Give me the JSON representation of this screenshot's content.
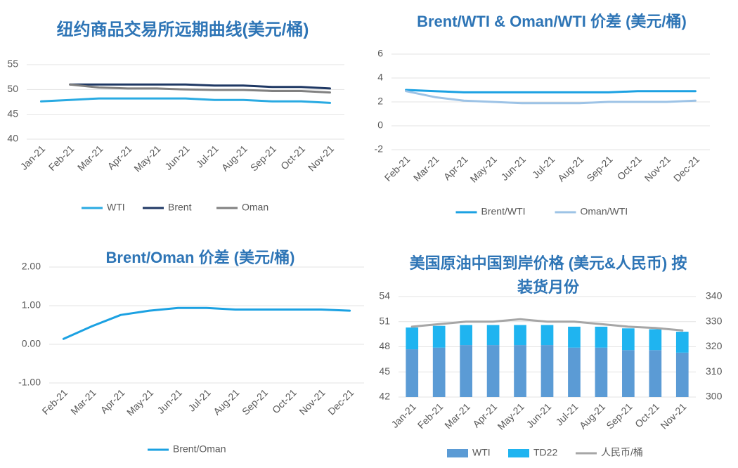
{
  "chart_data": [
    {
      "type": "line",
      "title": "纽约商品交易所远期曲线(美元/桶)",
      "categories": [
        "Jan-21",
        "Feb-21",
        "Mar-21",
        "Apr-21",
        "May-21",
        "Jun-21",
        "Jul-21",
        "Aug-21",
        "Sep-21",
        "Oct-21",
        "Nov-21"
      ],
      "series": [
        {
          "name": "WTI",
          "color": "#29aae2",
          "values": [
            47.6,
            47.9,
            48.2,
            48.2,
            48.2,
            48.2,
            47.9,
            47.9,
            47.6,
            47.6,
            47.3
          ]
        },
        {
          "name": "Brent",
          "color": "#1f3864",
          "values": [
            null,
            51,
            51,
            51,
            51,
            51,
            50.8,
            50.8,
            50.5,
            50.5,
            50.2
          ]
        },
        {
          "name": "Oman",
          "color": "#808080",
          "values": [
            null,
            51,
            50.4,
            50.2,
            50.2,
            50,
            49.9,
            49.9,
            49.7,
            49.7,
            49.4
          ]
        }
      ],
      "ylim": [
        40,
        55
      ],
      "yticks": [
        40,
        45,
        50,
        55
      ],
      "grid": true,
      "legend": "bottom"
    },
    {
      "type": "line",
      "title": "Brent/WTI & Oman/WTI 价差 (美元/桶)",
      "categories": [
        "Feb-21",
        "Mar-21",
        "Apr-21",
        "May-21",
        "Jun-21",
        "Jul-21",
        "Aug-21",
        "Sep-21",
        "Oct-21",
        "Nov-21",
        "Dec-21"
      ],
      "series": [
        {
          "name": "Brent/WTI",
          "color": "#1ba1e2",
          "values": [
            3.0,
            2.9,
            2.8,
            2.8,
            2.8,
            2.8,
            2.8,
            2.8,
            2.9,
            2.9,
            2.9
          ]
        },
        {
          "name": "Oman/WTI",
          "color": "#9dc3e6",
          "values": [
            2.9,
            2.4,
            2.1,
            2.0,
            1.9,
            1.9,
            1.9,
            2.0,
            2.0,
            2.0,
            2.1
          ]
        }
      ],
      "ylim": [
        -2,
        6
      ],
      "yticks": [
        -2,
        0,
        2,
        4,
        6
      ],
      "grid": true,
      "legend": "bottom"
    },
    {
      "type": "line",
      "title": "Brent/Oman 价差 (美元/桶)",
      "categories": [
        "Feb-21",
        "Mar-21",
        "Apr-21",
        "May-21",
        "Jun-21",
        "Jul-21",
        "Aug-21",
        "Sep-21",
        "Oct-21",
        "Nov-21",
        "Dec-21"
      ],
      "series": [
        {
          "name": "Brent/Oman",
          "color": "#1ba1e2",
          "values": [
            0.14,
            0.47,
            0.76,
            0.87,
            0.94,
            0.94,
            0.9,
            0.9,
            0.9,
            0.9,
            0.87
          ]
        }
      ],
      "ylim": [
        -1,
        2
      ],
      "yticks": [
        {
          "value": -1,
          "label": "-1.00"
        },
        {
          "value": 0,
          "label": "0.00"
        },
        {
          "value": 1,
          "label": "1.00"
        },
        {
          "value": 2,
          "label": "2.00"
        }
      ],
      "grid": true,
      "legend": "bottom"
    },
    {
      "type": "bar",
      "stacked": true,
      "title": "美国原油中国到岸价格 (美元&人民币) 按装货月份",
      "categories": [
        "Jan-21",
        "Feb-21",
        "Mar-21",
        "Apr-21",
        "May-21",
        "Jun-21",
        "Jul-21",
        "Aug-21",
        "Sep-21",
        "Oct-21",
        "Nov-21"
      ],
      "series": [
        {
          "name": "WTI",
          "color": "#5b9bd5",
          "values": [
            47.7,
            47.9,
            48.2,
            48.2,
            48.2,
            48.2,
            47.9,
            47.9,
            47.6,
            47.6,
            47.3
          ]
        },
        {
          "name": "TD22",
          "color": "#1fb4f0",
          "values": [
            2.6,
            2.6,
            2.4,
            2.4,
            2.4,
            2.4,
            2.5,
            2.5,
            2.6,
            2.5,
            2.5
          ]
        },
        {
          "name": "人民币/桶",
          "color": "#a6a6a6",
          "type": "line",
          "axis": "y2",
          "values": [
            328,
            329,
            330,
            330,
            331,
            330,
            330,
            329,
            328,
            327.5,
            326.5
          ]
        }
      ],
      "ylim": [
        42,
        54
      ],
      "yticks": [
        42,
        45,
        48,
        51,
        54
      ],
      "y2lim": [
        300,
        340
      ],
      "y2ticks": [
        300,
        310,
        320,
        330,
        340
      ],
      "grid": true,
      "legend": "bottom"
    }
  ]
}
